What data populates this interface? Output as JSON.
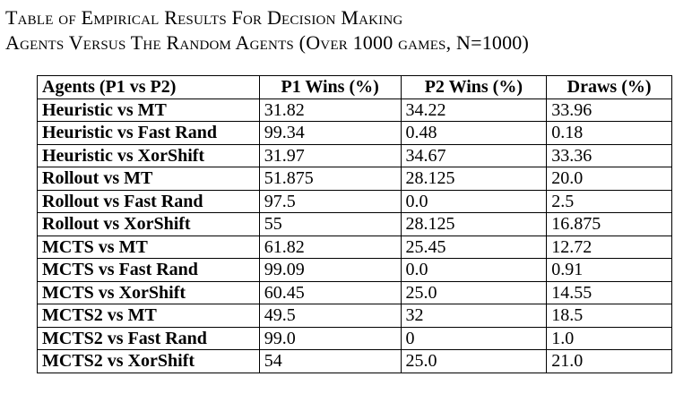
{
  "caption": {
    "line1": "Table of Empirical Results For Decision Making",
    "line2": "Agents Versus The Random Agents (Over 1000 games, N=1000)"
  },
  "table": {
    "headers": [
      "Agents (P1 vs P2)",
      "P1 Wins (%)",
      "P2 Wins (%)",
      "Draws (%)"
    ],
    "rows": [
      [
        "Heuristic vs MT",
        "31.82",
        "34.22",
        "33.96"
      ],
      [
        "Heuristic vs Fast Rand",
        "99.34",
        "0.48",
        "0.18"
      ],
      [
        "Heuristic vs XorShift",
        "31.97",
        "34.67",
        "33.36"
      ],
      [
        "Rollout vs MT",
        "51.875",
        "28.125",
        "20.0"
      ],
      [
        "Rollout vs Fast Rand",
        "97.5",
        "0.0",
        "2.5"
      ],
      [
        "Rollout vs XorShift",
        "55",
        "28.125",
        "16.875"
      ],
      [
        "MCTS vs MT",
        "61.82",
        "25.45",
        "12.72"
      ],
      [
        "MCTS vs Fast Rand",
        "99.09",
        "0.0",
        "0.91"
      ],
      [
        "MCTS vs XorShift",
        "60.45",
        "25.0",
        "14.55"
      ],
      [
        "MCTS2 vs MT",
        "49.5",
        "32",
        "18.5"
      ],
      [
        "MCTS2 vs Fast Rand",
        "99.0",
        "0",
        "1.0"
      ],
      [
        "MCTS2 vs XorShift",
        "54",
        "25.0",
        "21.0"
      ]
    ]
  }
}
